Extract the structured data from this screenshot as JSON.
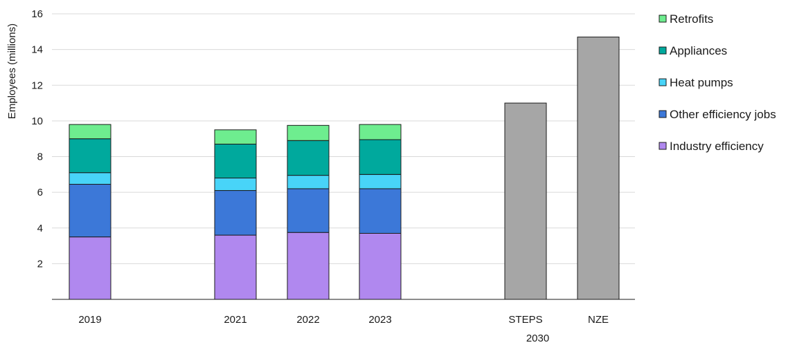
{
  "chart_data": {
    "type": "bar",
    "stacked": true,
    "ylabel": "Employees (millions)",
    "ylim": [
      0,
      16
    ],
    "yticks": [
      2,
      4,
      6,
      8,
      10,
      12,
      14,
      16
    ],
    "grid": true,
    "legend_position": "right",
    "categories": [
      "2019",
      "2021",
      "2022",
      "2023",
      "STEPS",
      "NZE"
    ],
    "group_label": "2030",
    "group_categories": [
      "STEPS",
      "NZE"
    ],
    "series": [
      {
        "name": "Industry efficiency",
        "color": "#b088ef",
        "values": [
          3.5,
          3.6,
          3.75,
          3.7,
          null,
          null
        ]
      },
      {
        "name": "Other efficiency jobs",
        "color": "#3c78d8",
        "values": [
          2.95,
          2.5,
          2.45,
          2.5,
          null,
          null
        ]
      },
      {
        "name": "Heat pumps",
        "color": "#48d4f8",
        "values": [
          0.65,
          0.7,
          0.75,
          0.8,
          null,
          null
        ]
      },
      {
        "name": "Appliances",
        "color": "#00a99d",
        "values": [
          1.9,
          1.9,
          1.95,
          1.95,
          null,
          null
        ]
      },
      {
        "name": "Retrofits",
        "color": "#6eed8f",
        "values": [
          0.8,
          0.8,
          0.85,
          0.85,
          null,
          null
        ]
      }
    ],
    "totals_series": {
      "color": "#a6a6a6",
      "values": [
        null,
        null,
        null,
        null,
        11.0,
        14.7
      ]
    },
    "legend_order": [
      "Retrofits",
      "Appliances",
      "Heat pumps",
      "Other efficiency jobs",
      "Industry efficiency"
    ]
  }
}
